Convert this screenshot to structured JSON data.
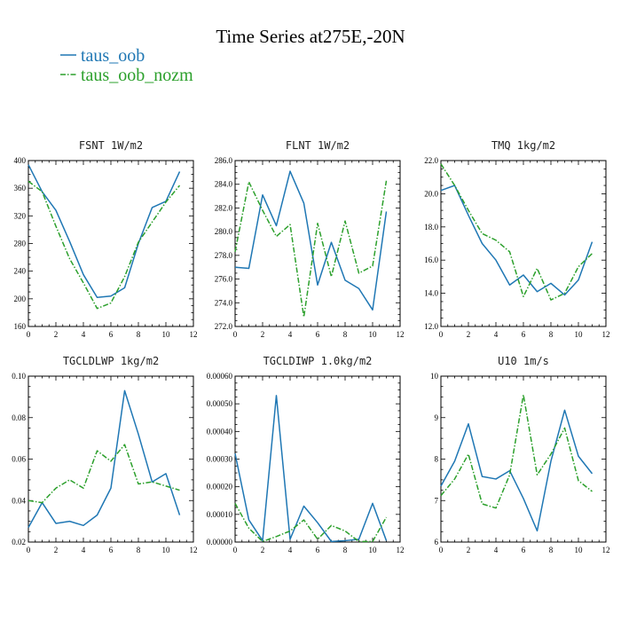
{
  "figure": {
    "title": "Time Series at275E,-20N",
    "legend": [
      {
        "name": "taus_oob",
        "color": "#1f77b4",
        "dash": "solid"
      },
      {
        "name": "taus_oob_nozm",
        "color": "#2ca02c",
        "dash": "dashdot"
      }
    ]
  },
  "chart_data": [
    {
      "type": "line",
      "title": "FSNT  1W/m2",
      "xlim": [
        0,
        12
      ],
      "xticks": [
        0,
        2,
        4,
        6,
        8,
        10,
        12
      ],
      "ylim": [
        160,
        400
      ],
      "yticks": [
        160,
        200,
        240,
        280,
        320,
        360,
        400
      ],
      "ytick_labels": [
        "160",
        "200",
        "240",
        "280",
        "320",
        "360",
        "400"
      ],
      "x": [
        0,
        1,
        2,
        3,
        4,
        5,
        6,
        7,
        8,
        9,
        10,
        11
      ],
      "series": [
        {
          "name": "taus_oob",
          "values": [
            394,
            355,
            328,
            283,
            235,
            202,
            204,
            216,
            280,
            332,
            341,
            384
          ]
        },
        {
          "name": "taus_oob_nozm",
          "values": [
            370,
            355,
            305,
            258,
            223,
            186,
            194,
            232,
            282,
            311,
            340,
            364
          ]
        }
      ]
    },
    {
      "type": "line",
      "title": "FLNT  1W/m2",
      "xlim": [
        0,
        12
      ],
      "xticks": [
        0,
        2,
        4,
        6,
        8,
        10,
        12
      ],
      "ylim": [
        272,
        286
      ],
      "yticks": [
        272,
        274,
        276,
        278,
        280,
        282,
        284,
        286
      ],
      "ytick_labels": [
        "272.0",
        "274.0",
        "276.0",
        "278.0",
        "280.0",
        "282.0",
        "284.0",
        "286.0"
      ],
      "x": [
        0,
        1,
        2,
        3,
        4,
        5,
        6,
        7,
        8,
        9,
        10,
        11
      ],
      "series": [
        {
          "name": "taus_oob",
          "values": [
            277.0,
            276.9,
            283.1,
            280.5,
            285.1,
            282.4,
            275.5,
            279.1,
            275.9,
            275.2,
            273.4,
            281.7
          ]
        },
        {
          "name": "taus_oob_nozm",
          "values": [
            278.3,
            284.2,
            281.8,
            279.6,
            280.6,
            272.8,
            280.7,
            276.2,
            280.9,
            276.5,
            277.1,
            284.3
          ]
        }
      ]
    },
    {
      "type": "line",
      "title": "TMQ  1kg/m2",
      "xlim": [
        0,
        12
      ],
      "xticks": [
        0,
        2,
        4,
        6,
        8,
        10,
        12
      ],
      "ylim": [
        12,
        22
      ],
      "yticks": [
        12,
        14,
        16,
        18,
        20,
        22
      ],
      "ytick_labels": [
        "12.0",
        "14.0",
        "16.0",
        "18.0",
        "20.0",
        "22.0"
      ],
      "x": [
        0,
        1,
        2,
        3,
        4,
        5,
        6,
        7,
        8,
        9,
        10,
        11
      ],
      "series": [
        {
          "name": "taus_oob",
          "values": [
            20.2,
            20.5,
            18.7,
            17.0,
            16.0,
            14.5,
            15.1,
            14.1,
            14.6,
            13.9,
            14.8,
            17.1
          ]
        },
        {
          "name": "taus_oob_nozm",
          "values": [
            21.8,
            20.5,
            19.0,
            17.6,
            17.2,
            16.5,
            13.8,
            15.5,
            13.6,
            14.0,
            15.6,
            16.4
          ]
        }
      ]
    },
    {
      "type": "line",
      "title": "TGCLDLWP  1kg/m2",
      "xlim": [
        0,
        12
      ],
      "xticks": [
        0,
        2,
        4,
        6,
        8,
        10,
        12
      ],
      "ylim": [
        0.02,
        0.1
      ],
      "yticks": [
        0.02,
        0.04,
        0.06,
        0.08,
        0.1
      ],
      "ytick_labels": [
        "0.02",
        "0.04",
        "0.06",
        "0.08",
        "0.10"
      ],
      "x": [
        0,
        1,
        2,
        3,
        4,
        5,
        6,
        7,
        8,
        9,
        10,
        11
      ],
      "series": [
        {
          "name": "taus_oob",
          "values": [
            0.027,
            0.039,
            0.029,
            0.03,
            0.028,
            0.033,
            0.046,
            0.093,
            0.072,
            0.049,
            0.053,
            0.033
          ]
        },
        {
          "name": "taus_oob_nozm",
          "values": [
            0.04,
            0.039,
            0.046,
            0.05,
            0.046,
            0.064,
            0.059,
            0.067,
            0.048,
            0.049,
            0.047,
            0.045
          ]
        }
      ]
    },
    {
      "type": "line",
      "title": "TGCLDIWP  1.0kg/m2",
      "xlim": [
        0,
        12
      ],
      "xticks": [
        0,
        2,
        4,
        6,
        8,
        10,
        12
      ],
      "ylim": [
        0,
        0.0006
      ],
      "yticks": [
        0,
        0.0001,
        0.0002,
        0.0003,
        0.0004,
        0.0005,
        0.0006
      ],
      "ytick_labels": [
        "0.00000",
        "0.00010",
        "0.00020",
        "0.00030",
        "0.00040",
        "0.00050",
        "0.00060"
      ],
      "x": [
        0,
        1,
        2,
        3,
        4,
        5,
        6,
        7,
        8,
        9,
        10,
        11
      ],
      "series": [
        {
          "name": "taus_oob",
          "values": [
            0.00032,
            8e-05,
            5e-06,
            0.00053,
            1e-05,
            0.00013,
            7e-05,
            2e-06,
            5e-06,
            1e-05,
            0.00014,
            5e-06
          ]
        },
        {
          "name": "taus_oob_nozm",
          "values": [
            0.00014,
            5e-05,
            2e-06,
            2e-05,
            4e-05,
            8e-05,
            1e-05,
            6e-05,
            4e-05,
            2e-06,
            2e-06,
            9e-05
          ]
        }
      ]
    },
    {
      "type": "line",
      "title": "U10  1m/s",
      "xlim": [
        0,
        12
      ],
      "xticks": [
        0,
        2,
        4,
        6,
        8,
        10,
        12
      ],
      "ylim": [
        6,
        10
      ],
      "yticks": [
        6,
        7,
        8,
        9,
        10
      ],
      "ytick_labels": [
        "6",
        "7",
        "8",
        "9",
        "10"
      ],
      "x": [
        0,
        1,
        2,
        3,
        4,
        5,
        6,
        7,
        8,
        9,
        10,
        11
      ],
      "series": [
        {
          "name": "taus_oob",
          "values": [
            7.35,
            7.95,
            8.85,
            7.58,
            7.52,
            7.72,
            7.05,
            6.27,
            7.95,
            9.18,
            8.07,
            7.65
          ]
        },
        {
          "name": "taus_oob_nozm",
          "values": [
            7.12,
            7.52,
            8.12,
            6.92,
            6.82,
            7.62,
            9.55,
            7.62,
            8.12,
            8.75,
            7.48,
            7.22
          ]
        }
      ]
    }
  ]
}
